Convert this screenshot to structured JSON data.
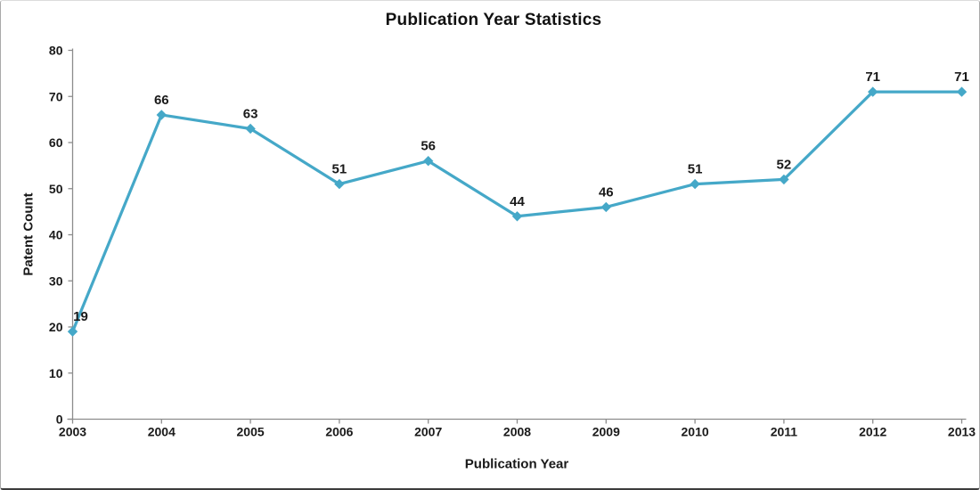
{
  "chart_data": {
    "type": "line",
    "title": "Publication Year Statistics",
    "xlabel": "Publication Year",
    "ylabel": "Patent Count",
    "categories": [
      "2003",
      "2004",
      "2005",
      "2006",
      "2007",
      "2008",
      "2009",
      "2010",
      "2011",
      "2012",
      "2013"
    ],
    "series": [
      {
        "name": "Patent Count",
        "values": [
          19,
          66,
          63,
          51,
          56,
          44,
          46,
          51,
          52,
          71,
          71
        ]
      }
    ],
    "data_labels": [
      "19",
      "66",
      "63",
      "51",
      "56",
      "44",
      "46",
      "51",
      "52",
      "71",
      "71"
    ],
    "ylim": [
      0,
      80
    ],
    "yticks": [
      0,
      10,
      20,
      30,
      40,
      50,
      60,
      70,
      80
    ],
    "grid": false,
    "legend": "none",
    "marker": "diamond",
    "colors": {
      "line": "#45A8C8",
      "marker": "#45A8C8",
      "axis": "#8C8C8C",
      "tick_text": "#1A1A1A",
      "data_label_text": "#1A1A1A",
      "title_text": "#111111",
      "background": "#FFFFFF"
    }
  }
}
